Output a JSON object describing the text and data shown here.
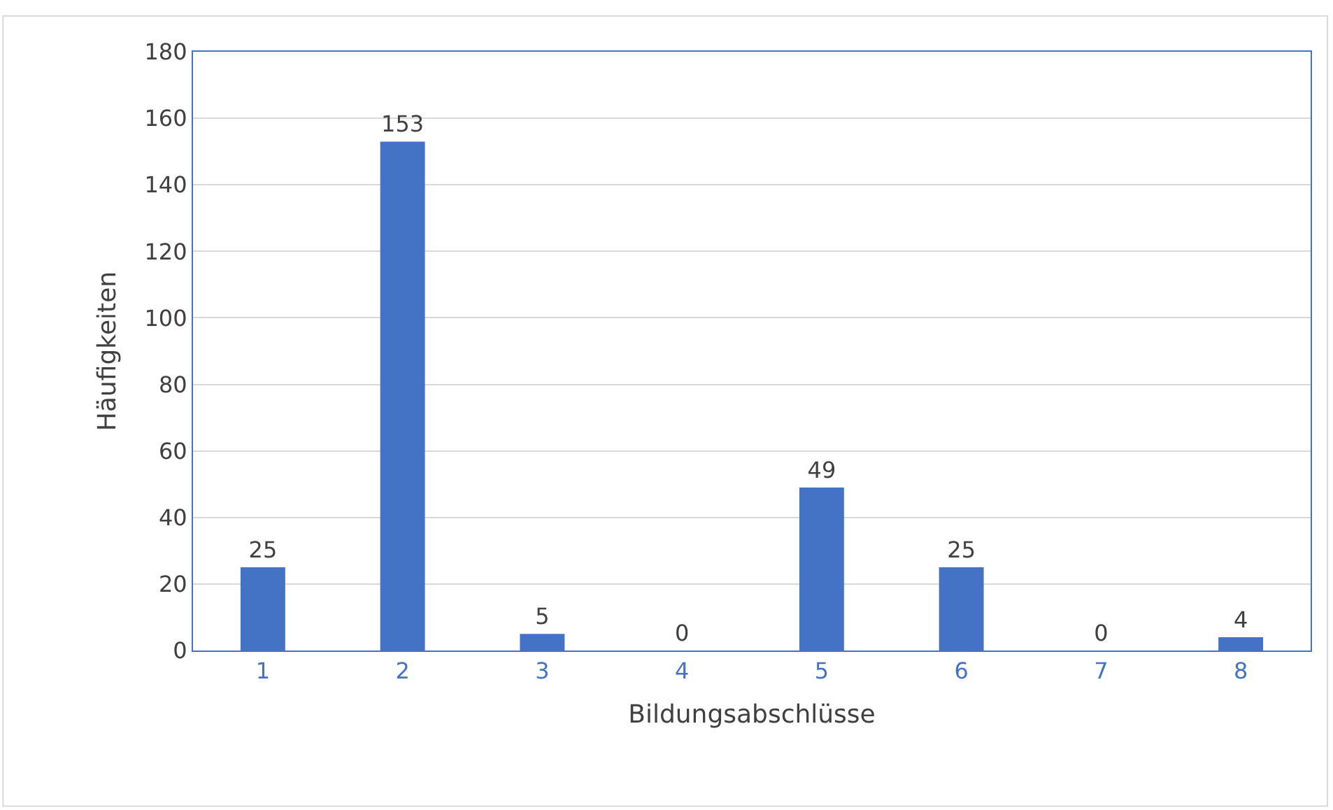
{
  "chart_data": {
    "type": "bar",
    "xlabel": "Bildungsabschlüsse",
    "ylabel": "Häufigkeiten",
    "categories": [
      "1",
      "2",
      "3",
      "4",
      "5",
      "6",
      "7",
      "8"
    ],
    "values": [
      25,
      153,
      5,
      0,
      49,
      25,
      0,
      4
    ],
    "color": "#4472c4",
    "ylim": [
      0,
      180
    ],
    "yticks": [
      0,
      20,
      40,
      60,
      80,
      100,
      120,
      140,
      160,
      180
    ],
    "grid": "y",
    "data_labels": true
  }
}
